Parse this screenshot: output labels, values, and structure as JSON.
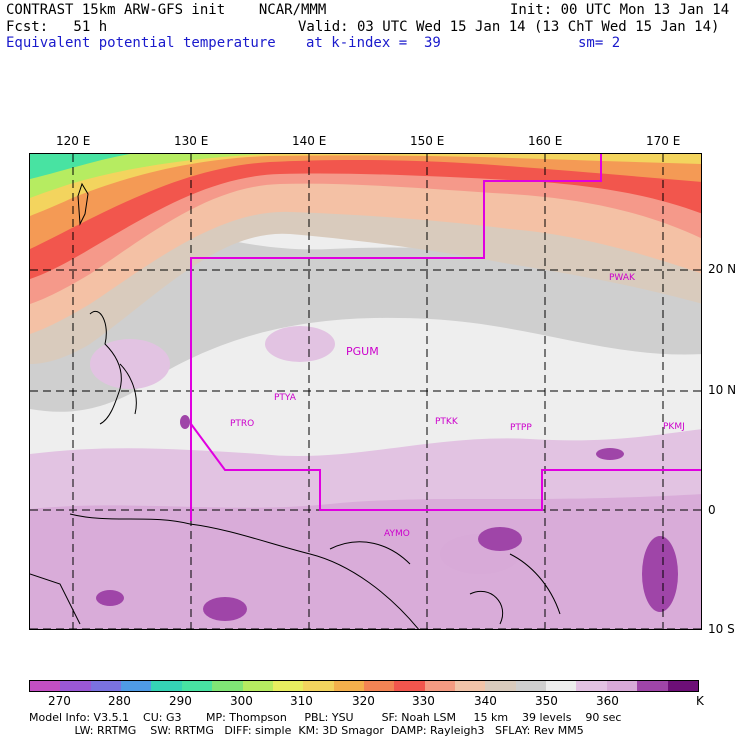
{
  "header": {
    "line1_left": "CONTRAST 15km ARW-GFS init    NCAR/MMM",
    "line1_right": "Init: 00 UTC Mon 13 Jan 14",
    "line2_left": "Fcst:   51 h",
    "line2_right": "Valid: 03 UTC Wed 15 Jan 14 (13 ChT Wed 15 Jan 14)",
    "line3_left": "Equivalent potential temperature",
    "line3_mid": "at k-index =  39",
    "line3_right": "sm= 2"
  },
  "lon_labels": [
    "120 E",
    "130 E",
    "140 E",
    "150 E",
    "160 E",
    "170 E"
  ],
  "lat_labels": [
    "20 N",
    "10 N",
    "0",
    "10 S"
  ],
  "stations": [
    "PGUM",
    "PTYA",
    "PTRO",
    "PTKK",
    "PTPP",
    "PKMJ",
    "PWAK",
    "AYMO"
  ],
  "colorbar": {
    "labels": [
      "270",
      "280",
      "290",
      "300",
      "310",
      "320",
      "330",
      "340",
      "350",
      "360",
      "K"
    ],
    "colors": [
      "#c44fc4",
      "#9a58d6",
      "#7a72e0",
      "#4f9be6",
      "#35d3b5",
      "#48e3a2",
      "#80e676",
      "#b6ec61",
      "#e8ee60",
      "#f3d45e",
      "#f4b04c",
      "#f38454",
      "#f2564d",
      "#f49b82",
      "#f1c4a9",
      "#d9cbbd",
      "#cfcfcf",
      "#ededed",
      "#e3c2e3",
      "#d8aad8",
      "#9f45a8",
      "#6d0f77"
    ]
  },
  "footer": {
    "line1": "Model Info: V3.5.1    CU: G3       MP: Thompson     PBL: YSU        SF: Noah LSM     15 km    39 levels    90 sec",
    "line2": "             LW: RRTMG    SW: RRTMG   DIFF: simple  KM: 3D Smagor  DAMP: Rayleigh3   SFLAY: Rev MM5"
  }
}
